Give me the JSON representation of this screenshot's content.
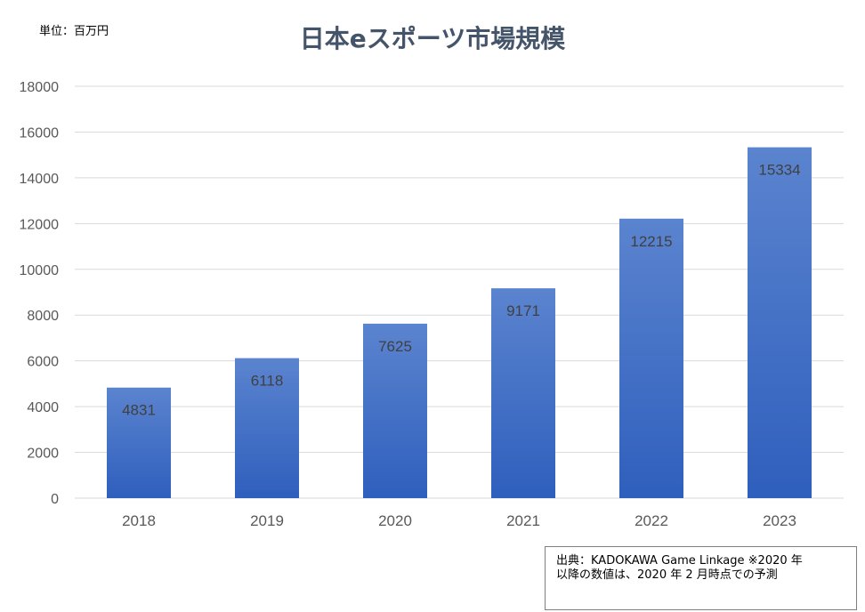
{
  "unit": "単位：百万円",
  "source": {
    "line1": "出典：KADOKAWA Game Linkage ※2020 年",
    "line2": "以降の数値は、2020 年 2 月時点での予測"
  },
  "colors": {
    "bar_top": "#5b84cf",
    "bar_bottom": "#2f5fbd",
    "grid": "#d9d9d9",
    "axis_text": "#595959",
    "title": "#44546a"
  },
  "chart_data": {
    "type": "bar",
    "title": "日本eスポーツ市場規模",
    "categories": [
      "2018",
      "2019",
      "2020",
      "2021",
      "2022",
      "2023"
    ],
    "values": [
      4831,
      6118,
      7625,
      9171,
      12215,
      15334
    ],
    "xlabel": "",
    "ylabel": "",
    "ylim": [
      0,
      18000
    ],
    "yticks": [
      "0",
      "2000",
      "4000",
      "6000",
      "8000",
      "10000",
      "12000",
      "14000",
      "16000",
      "18000"
    ],
    "grid": true,
    "data_labels": true,
    "legend": "none"
  }
}
